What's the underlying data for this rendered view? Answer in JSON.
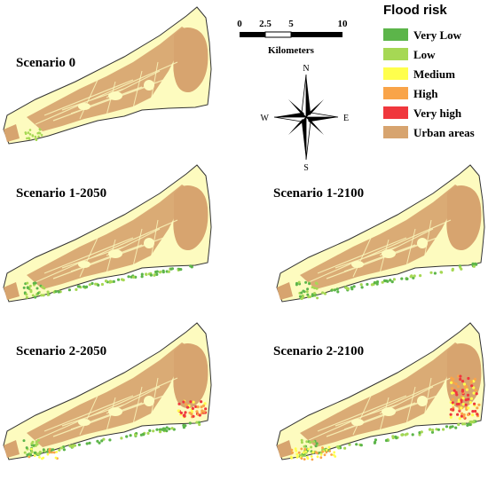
{
  "scenarios": [
    {
      "id": "s0",
      "label": "Scenario 0",
      "flood": "none"
    },
    {
      "id": "s1-2050",
      "label": "Scenario 1-2050",
      "flood": "low"
    },
    {
      "id": "s1-2100",
      "label": "Scenario 1-2100",
      "flood": "low"
    },
    {
      "id": "s2-2050",
      "label": "Scenario 2-2050",
      "flood": "medium"
    },
    {
      "id": "s2-2100",
      "label": "Scenario 2-2100",
      "flood": "high"
    }
  ],
  "scale_bar": {
    "ticks": [
      "0",
      "2.5",
      "5",
      "10"
    ],
    "unit": "Kilometers"
  },
  "compass": {
    "n": "N",
    "s": "S",
    "e": "E",
    "w": "W"
  },
  "legend": {
    "title": "Flood risk",
    "items": [
      {
        "label": "Very Low",
        "color": "#5cb54a"
      },
      {
        "label": "Low",
        "color": "#a6d854"
      },
      {
        "label": "Medium",
        "color": "#ffff4d"
      },
      {
        "label": "High",
        "color": "#f9a449"
      },
      {
        "label": "Very high",
        "color": "#f0373d"
      },
      {
        "label": "Urban areas",
        "color": "#d7a46f"
      }
    ]
  },
  "colors": {
    "land": "#fdfbbf",
    "urban": "#d7a46f",
    "outline": "#333333"
  }
}
